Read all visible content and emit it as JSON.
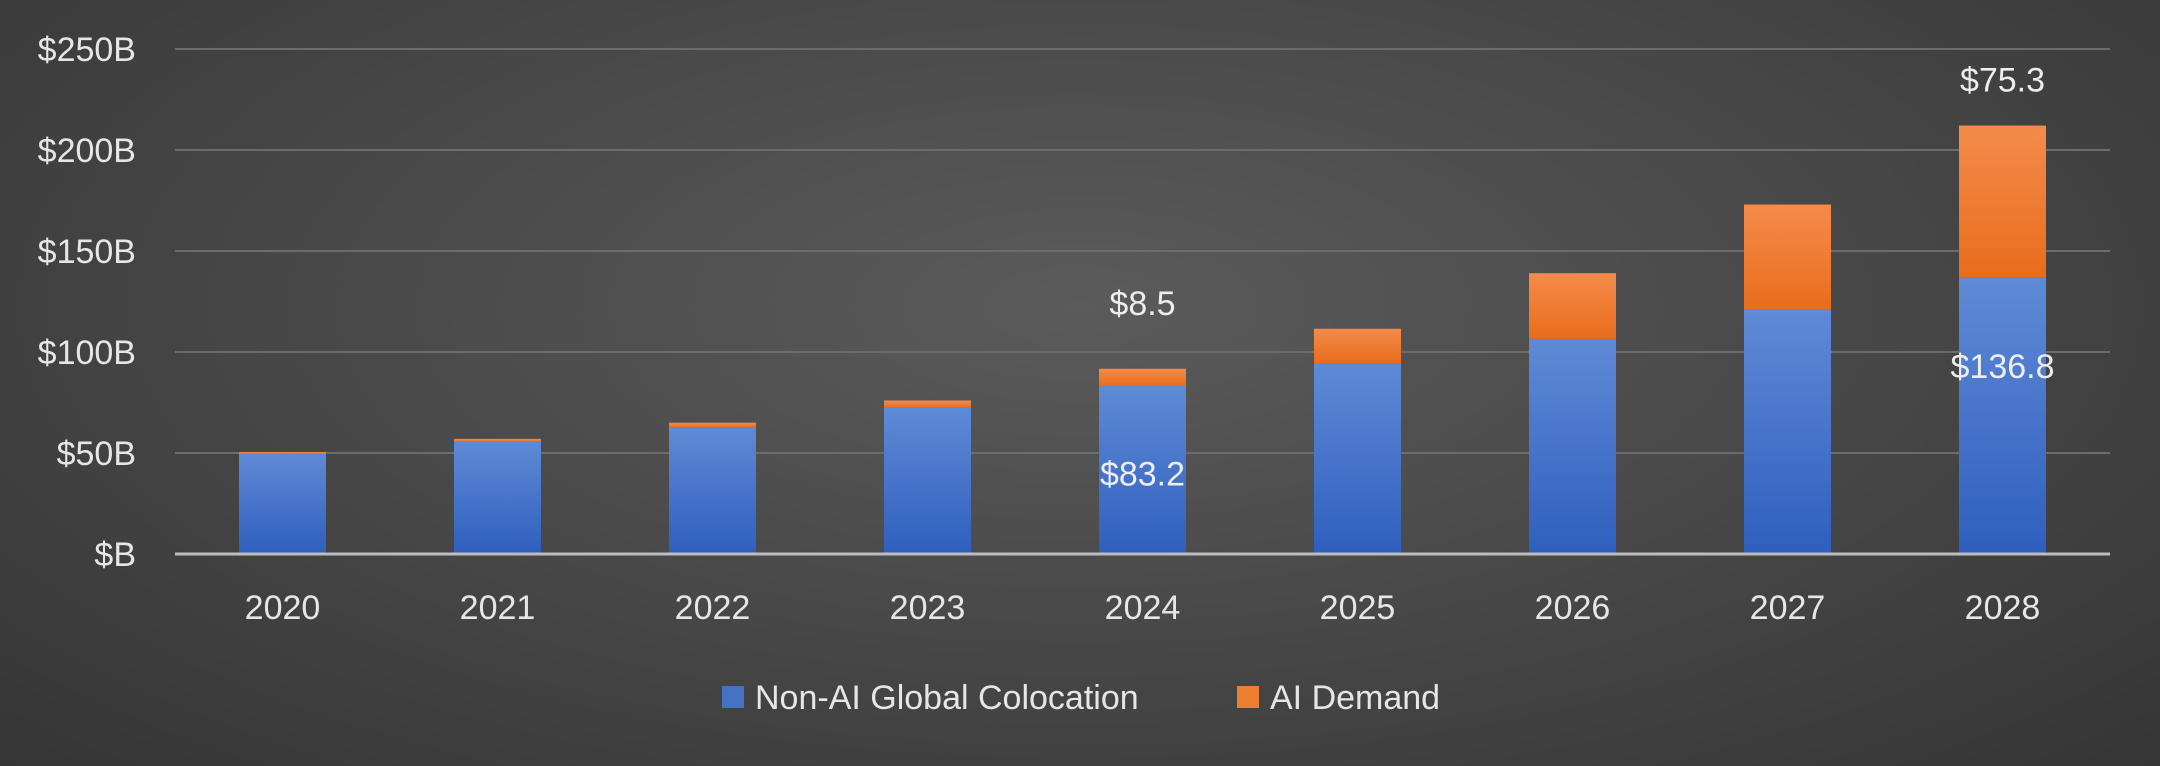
{
  "chart_data": {
    "type": "bar",
    "stacked": true,
    "categories": [
      "2020",
      "2021",
      "2022",
      "2023",
      "2024",
      "2025",
      "2026",
      "2027",
      "2028"
    ],
    "series": [
      {
        "name": "Non-AI Global Colocation",
        "color": "#4472c4",
        "values": [
          49.5,
          55.5,
          62.5,
          72.5,
          83.2,
          94.5,
          106.5,
          121.0,
          136.8
        ]
      },
      {
        "name": "AI Demand",
        "color": "#ed7d31",
        "values": [
          1.0,
          1.5,
          2.5,
          3.5,
          8.5,
          17.0,
          32.5,
          52.0,
          75.3
        ]
      }
    ],
    "ylim": [
      0,
      250
    ],
    "yticks": [
      0,
      50,
      100,
      150,
      200,
      250
    ],
    "ytick_labels": [
      "$B",
      "$50B",
      "$100B",
      "$150B",
      "$200B",
      "$250B"
    ],
    "data_labels": [
      {
        "category": "2024",
        "series": "AI Demand",
        "text": "$8.5"
      },
      {
        "category": "2024",
        "series": "Non-AI Global Colocation",
        "text": "$83.2"
      },
      {
        "category": "2028",
        "series": "AI Demand",
        "text": "$75.3"
      },
      {
        "category": "2028",
        "series": "Non-AI Global Colocation",
        "text": "$136.8"
      }
    ],
    "title": "",
    "xlabel": "",
    "ylabel": "",
    "grid": true,
    "legend": "bottom-center"
  }
}
